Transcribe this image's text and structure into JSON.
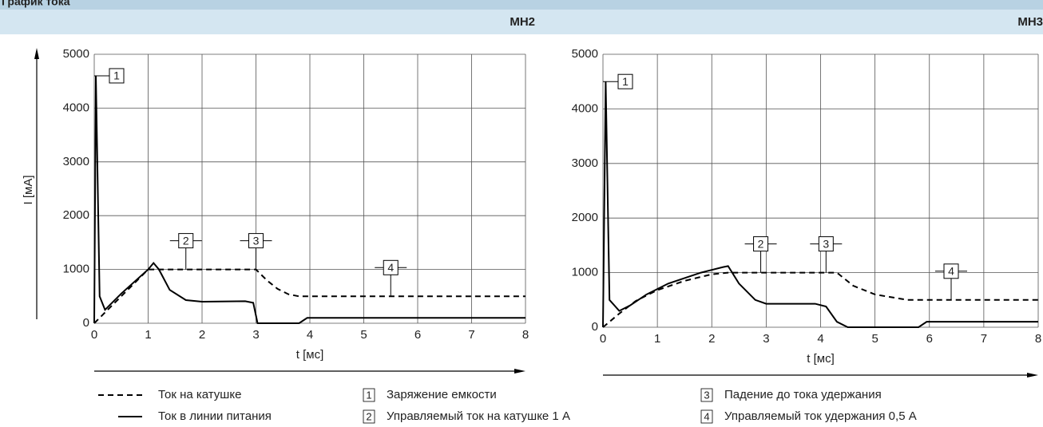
{
  "header": {
    "title": "График тока"
  },
  "chart_data": [
    {
      "type": "line",
      "title": "МН2",
      "xlabel": "t [мс]",
      "ylabel": "I [мA]",
      "xlim": [
        0,
        8
      ],
      "ylim": [
        0,
        5000
      ],
      "xticks": [
        0,
        1,
        2,
        3,
        4,
        5,
        6,
        7,
        8
      ],
      "yticks": [
        0,
        1000,
        2000,
        3000,
        4000,
        5000
      ],
      "grid": true,
      "series": [
        {
          "name": "Ток на катушке",
          "color": "#000000",
          "dash": true,
          "x": [
            0,
            1.0,
            1.1,
            3.0,
            3.2,
            3.4,
            3.6,
            3.8,
            8
          ],
          "values": [
            0,
            1000,
            1000,
            1000,
            800,
            640,
            540,
            500,
            500
          ]
        },
        {
          "name": "Ток в линии питания",
          "color": "#000000",
          "dash": false,
          "x": [
            0,
            0.03,
            0.1,
            0.2,
            0.5,
            1.0,
            1.1,
            1.2,
            1.4,
            1.7,
            2.0,
            2.8,
            2.95,
            3.03,
            3.8,
            3.95,
            8
          ],
          "values": [
            0,
            4600,
            500,
            250,
            550,
            1000,
            1120,
            1000,
            620,
            430,
            400,
            410,
            380,
            0,
            0,
            100,
            100
          ]
        }
      ],
      "annotations": [
        {
          "label": "1",
          "x": 0,
          "y": 4600
        },
        {
          "label": "2",
          "x": 1.7,
          "y": 1000
        },
        {
          "label": "3",
          "x": 3.0,
          "y": 1000
        },
        {
          "label": "4",
          "x": 5.5,
          "y": 500
        }
      ]
    },
    {
      "type": "line",
      "title": "МН3",
      "xlabel": "t [мс]",
      "xlim": [
        0,
        8
      ],
      "ylim": [
        0,
        5000
      ],
      "xticks": [
        0,
        1,
        2,
        3,
        4,
        5,
        6,
        7,
        8
      ],
      "yticks": [
        0,
        1000,
        2000,
        3000,
        4000,
        5000
      ],
      "grid": true,
      "series": [
        {
          "name": "Ток на катушке",
          "color": "#000000",
          "dash": true,
          "x": [
            0,
            0.3,
            0.6,
            1.0,
            1.5,
            2.0,
            2.3,
            4.3,
            4.6,
            5.0,
            5.6,
            8
          ],
          "values": [
            0,
            250,
            480,
            680,
            850,
            970,
            1000,
            1000,
            760,
            600,
            500,
            500
          ]
        },
        {
          "name": "Ток в линии питания",
          "color": "#000000",
          "dash": false,
          "x": [
            0,
            0.05,
            0.12,
            0.3,
            0.5,
            0.8,
            1.2,
            1.8,
            2.2,
            2.3,
            2.5,
            2.8,
            3.0,
            3.9,
            4.1,
            4.3,
            4.5,
            5.8,
            5.95,
            8
          ],
          "values": [
            0,
            4500,
            500,
            300,
            400,
            600,
            800,
            1000,
            1100,
            1120,
            800,
            500,
            430,
            430,
            380,
            100,
            0,
            0,
            100,
            100
          ]
        }
      ],
      "annotations": [
        {
          "label": "1",
          "x": 0,
          "y": 4500
        },
        {
          "label": "2",
          "x": 2.9,
          "y": 1000
        },
        {
          "label": "3",
          "x": 4.1,
          "y": 1000
        },
        {
          "label": "4",
          "x": 6.4,
          "y": 500
        }
      ]
    }
  ],
  "notes": [
    {
      "label": "1",
      "text": "Заряжение емкости"
    },
    {
      "label": "2",
      "text": "Управляемый ток на катушке 1 А"
    },
    {
      "label": "3",
      "text": "Падение до тока удержания"
    },
    {
      "label": "4",
      "text": "Управляемый ток удержания 0,5 А"
    }
  ]
}
